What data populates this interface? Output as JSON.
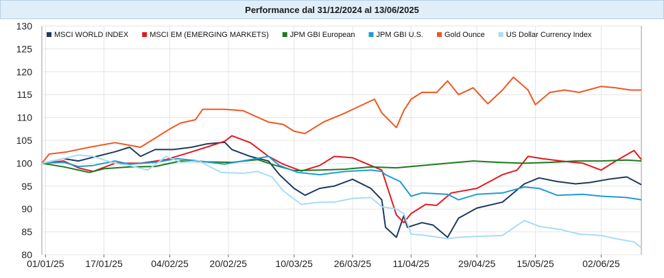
{
  "chart_data": {
    "type": "line",
    "title": "Performance dal 31/12/2024 al 13/06/2025",
    "xlabel": "",
    "ylabel": "",
    "x_start": "2024-12-31",
    "x_end": "2025-06-13",
    "x_ticks": [
      {
        "date": "2025-01-01",
        "label": "01/01/25"
      },
      {
        "date": "2025-01-17",
        "label": "17/01/25"
      },
      {
        "date": "2025-02-04",
        "label": "04/02/25"
      },
      {
        "date": "2025-02-20",
        "label": "20/02/25"
      },
      {
        "date": "2025-03-10",
        "label": "10/03/25"
      },
      {
        "date": "2025-03-26",
        "label": "26/03/25"
      },
      {
        "date": "2025-04-11",
        "label": "11/04/25"
      },
      {
        "date": "2025-04-29",
        "label": "29/04/25"
      },
      {
        "date": "2025-05-15",
        "label": "15/05/25"
      },
      {
        "date": "2025-06-02",
        "label": "02/06/25"
      }
    ],
    "ylim": [
      80,
      130
    ],
    "yticks": [
      80,
      85,
      90,
      95,
      100,
      105,
      110,
      115,
      120,
      125,
      130
    ],
    "grid": true,
    "legend_position": "top-left",
    "series": [
      {
        "name": "MSCI WORLD INDEX",
        "color": "#1c3a5e",
        "points": [
          [
            "2024-12-31",
            100
          ],
          [
            "2025-01-06",
            101
          ],
          [
            "2025-01-10",
            100.5
          ],
          [
            "2025-01-15",
            101.5
          ],
          [
            "2025-01-20",
            102.5
          ],
          [
            "2025-01-24",
            103.5
          ],
          [
            "2025-01-27",
            101.5
          ],
          [
            "2025-01-31",
            103
          ],
          [
            "2025-02-05",
            103
          ],
          [
            "2025-02-10",
            103.5
          ],
          [
            "2025-02-14",
            104.2
          ],
          [
            "2025-02-19",
            104.6
          ],
          [
            "2025-02-21",
            103
          ],
          [
            "2025-02-26",
            101.5
          ],
          [
            "2025-03-03",
            100.5
          ],
          [
            "2025-03-06",
            97.5
          ],
          [
            "2025-03-10",
            94.5
          ],
          [
            "2025-03-13",
            93
          ],
          [
            "2025-03-17",
            94.5
          ],
          [
            "2025-03-21",
            95
          ],
          [
            "2025-03-26",
            96.5
          ],
          [
            "2025-03-31",
            94.5
          ],
          [
            "2025-04-03",
            92
          ],
          [
            "2025-04-04",
            86
          ],
          [
            "2025-04-07",
            83.8
          ],
          [
            "2025-04-09",
            88.5
          ],
          [
            "2025-04-10",
            86
          ],
          [
            "2025-04-14",
            87
          ],
          [
            "2025-04-17",
            86.5
          ],
          [
            "2025-04-21",
            83.8
          ],
          [
            "2025-04-24",
            88
          ],
          [
            "2025-04-29",
            90.2
          ],
          [
            "2025-05-06",
            91.5
          ],
          [
            "2025-05-12",
            95.5
          ],
          [
            "2025-05-16",
            96.8
          ],
          [
            "2025-05-21",
            96
          ],
          [
            "2025-05-26",
            95.5
          ],
          [
            "2025-05-30",
            95.8
          ],
          [
            "2025-06-04",
            96.5
          ],
          [
            "2025-06-09",
            97
          ],
          [
            "2025-06-13",
            95.3
          ]
        ]
      },
      {
        "name": "MSCI EM (EMERGING MARKETS)",
        "color": "#e3181d",
        "points": [
          [
            "2024-12-31",
            100
          ],
          [
            "2025-01-06",
            100.5
          ],
          [
            "2025-01-10",
            99
          ],
          [
            "2025-01-14",
            98.2
          ],
          [
            "2025-01-20",
            100
          ],
          [
            "2025-01-27",
            100
          ],
          [
            "2025-02-03",
            100.8
          ],
          [
            "2025-02-10",
            102.5
          ],
          [
            "2025-02-14",
            103.5
          ],
          [
            "2025-02-19",
            104.8
          ],
          [
            "2025-02-21",
            106
          ],
          [
            "2025-02-26",
            104.5
          ],
          [
            "2025-03-03",
            101.5
          ],
          [
            "2025-03-07",
            99.8
          ],
          [
            "2025-03-12",
            98.3
          ],
          [
            "2025-03-17",
            99.5
          ],
          [
            "2025-03-21",
            101.5
          ],
          [
            "2025-03-26",
            101.2
          ],
          [
            "2025-03-31",
            99.5
          ],
          [
            "2025-04-03",
            98.5
          ],
          [
            "2025-04-07",
            88.7
          ],
          [
            "2025-04-09",
            87
          ],
          [
            "2025-04-11",
            89
          ],
          [
            "2025-04-15",
            91
          ],
          [
            "2025-04-18",
            90.8
          ],
          [
            "2025-04-22",
            93.5
          ],
          [
            "2025-04-29",
            94.5
          ],
          [
            "2025-05-06",
            97.5
          ],
          [
            "2025-05-10",
            98.5
          ],
          [
            "2025-05-13",
            101.5
          ],
          [
            "2025-05-17",
            101
          ],
          [
            "2025-05-22",
            100.5
          ],
          [
            "2025-05-28",
            100
          ],
          [
            "2025-06-02",
            98.5
          ],
          [
            "2025-06-06",
            100.5
          ],
          [
            "2025-06-11",
            102.8
          ],
          [
            "2025-06-13",
            100.8
          ]
        ]
      },
      {
        "name": "JPM GBI European",
        "color": "#1b7a1e",
        "points": [
          [
            "2024-12-31",
            100
          ],
          [
            "2025-01-06",
            99.2
          ],
          [
            "2025-01-13",
            98
          ],
          [
            "2025-01-17",
            98.8
          ],
          [
            "2025-01-24",
            99.2
          ],
          [
            "2025-01-31",
            99.3
          ],
          [
            "2025-02-07",
            100.5
          ],
          [
            "2025-02-14",
            100.3
          ],
          [
            "2025-02-21",
            100.2
          ],
          [
            "2025-02-28",
            100.8
          ],
          [
            "2025-03-05",
            99.5
          ],
          [
            "2025-03-10",
            98.4
          ],
          [
            "2025-03-17",
            98.5
          ],
          [
            "2025-03-24",
            98.7
          ],
          [
            "2025-03-31",
            99.2
          ],
          [
            "2025-04-07",
            99
          ],
          [
            "2025-04-14",
            99.5
          ],
          [
            "2025-04-21",
            100
          ],
          [
            "2025-04-28",
            100.5
          ],
          [
            "2025-05-05",
            100.2
          ],
          [
            "2025-05-12",
            100
          ],
          [
            "2025-05-19",
            100.2
          ],
          [
            "2025-05-26",
            100.5
          ],
          [
            "2025-06-02",
            100.5
          ],
          [
            "2025-06-09",
            100.7
          ],
          [
            "2025-06-13",
            100.5
          ]
        ]
      },
      {
        "name": "JPM GBI U.S.",
        "color": "#1f9ad6",
        "points": [
          [
            "2024-12-31",
            100
          ],
          [
            "2025-01-06",
            100.2
          ],
          [
            "2025-01-10",
            99.3
          ],
          [
            "2025-01-14",
            99.5
          ],
          [
            "2025-01-20",
            100.5
          ],
          [
            "2025-01-24",
            99.8
          ],
          [
            "2025-01-31",
            100.2
          ],
          [
            "2025-02-06",
            101
          ],
          [
            "2025-02-12",
            100.5
          ],
          [
            "2025-02-19",
            99.8
          ],
          [
            "2025-02-26",
            100.8
          ],
          [
            "2025-03-03",
            101.5
          ],
          [
            "2025-03-06",
            99.5
          ],
          [
            "2025-03-11",
            98
          ],
          [
            "2025-03-17",
            97.5
          ],
          [
            "2025-03-24",
            98.2
          ],
          [
            "2025-03-31",
            98.5
          ],
          [
            "2025-04-03",
            98.2
          ],
          [
            "2025-04-04",
            97.5
          ],
          [
            "2025-04-08",
            96
          ],
          [
            "2025-04-11",
            92.8
          ],
          [
            "2025-04-14",
            93.5
          ],
          [
            "2025-04-21",
            93.2
          ],
          [
            "2025-04-24",
            92
          ],
          [
            "2025-04-29",
            93.2
          ],
          [
            "2025-05-06",
            93.5
          ],
          [
            "2025-05-12",
            94.8
          ],
          [
            "2025-05-16",
            94.5
          ],
          [
            "2025-05-21",
            93
          ],
          [
            "2025-05-28",
            93.2
          ],
          [
            "2025-06-02",
            92.8
          ],
          [
            "2025-06-09",
            92.5
          ],
          [
            "2025-06-13",
            92
          ]
        ]
      },
      {
        "name": "Gold Ounce",
        "color": "#f0561f",
        "points": [
          [
            "2024-12-31",
            100
          ],
          [
            "2025-01-02",
            102
          ],
          [
            "2025-01-07",
            102.5
          ],
          [
            "2025-01-13",
            103.5
          ],
          [
            "2025-01-20",
            104.5
          ],
          [
            "2025-01-27",
            103.5
          ],
          [
            "2025-01-31",
            105.5
          ],
          [
            "2025-02-04",
            107.5
          ],
          [
            "2025-02-07",
            108.8
          ],
          [
            "2025-02-11",
            109.5
          ],
          [
            "2025-02-13",
            111.8
          ],
          [
            "2025-02-19",
            111.8
          ],
          [
            "2025-02-24",
            111.5
          ],
          [
            "2025-03-03",
            109
          ],
          [
            "2025-03-07",
            108.5
          ],
          [
            "2025-03-10",
            107
          ],
          [
            "2025-03-13",
            106.5
          ],
          [
            "2025-03-18",
            109
          ],
          [
            "2025-03-24",
            111
          ],
          [
            "2025-03-28",
            112.5
          ],
          [
            "2025-04-01",
            114
          ],
          [
            "2025-04-03",
            111
          ],
          [
            "2025-04-07",
            107.8
          ],
          [
            "2025-04-09",
            111.5
          ],
          [
            "2025-04-11",
            114
          ],
          [
            "2025-04-14",
            115.5
          ],
          [
            "2025-04-18",
            115.5
          ],
          [
            "2025-04-21",
            118
          ],
          [
            "2025-04-24",
            115
          ],
          [
            "2025-04-28",
            116.5
          ],
          [
            "2025-05-02",
            113
          ],
          [
            "2025-05-06",
            116
          ],
          [
            "2025-05-09",
            118.8
          ],
          [
            "2025-05-13",
            116
          ],
          [
            "2025-05-15",
            112.8
          ],
          [
            "2025-05-19",
            115.5
          ],
          [
            "2025-05-23",
            116
          ],
          [
            "2025-05-27",
            115.5
          ],
          [
            "2025-06-02",
            116.8
          ],
          [
            "2025-06-06",
            116.5
          ],
          [
            "2025-06-10",
            116
          ],
          [
            "2025-06-13",
            116
          ]
        ]
      },
      {
        "name": "US Dollar Currency Index",
        "color": "#a9dcf3",
        "points": [
          [
            "2024-12-31",
            100
          ],
          [
            "2025-01-06",
            101
          ],
          [
            "2025-01-10",
            101.8
          ],
          [
            "2025-01-14",
            101.5
          ],
          [
            "2025-01-20",
            100
          ],
          [
            "2025-01-24",
            99.5
          ],
          [
            "2025-01-29",
            98.5
          ],
          [
            "2025-02-03",
            101.5
          ],
          [
            "2025-02-07",
            100.2
          ],
          [
            "2025-02-12",
            100.5
          ],
          [
            "2025-02-18",
            98
          ],
          [
            "2025-02-24",
            97.8
          ],
          [
            "2025-02-28",
            98.2
          ],
          [
            "2025-03-04",
            97
          ],
          [
            "2025-03-07",
            94
          ],
          [
            "2025-03-12",
            91
          ],
          [
            "2025-03-17",
            91.5
          ],
          [
            "2025-03-21",
            91.5
          ],
          [
            "2025-03-26",
            92.3
          ],
          [
            "2025-03-31",
            92.5
          ],
          [
            "2025-04-03",
            90.5
          ],
          [
            "2025-04-07",
            90
          ],
          [
            "2025-04-09",
            89
          ],
          [
            "2025-04-11",
            84.5
          ],
          [
            "2025-04-15",
            84.2
          ],
          [
            "2025-04-21",
            83.5
          ],
          [
            "2025-04-24",
            83.8
          ],
          [
            "2025-04-29",
            84
          ],
          [
            "2025-05-06",
            84.2
          ],
          [
            "2025-05-12",
            87.5
          ],
          [
            "2025-05-16",
            86.2
          ],
          [
            "2025-05-22",
            85.5
          ],
          [
            "2025-05-27",
            84.5
          ],
          [
            "2025-06-02",
            84.2
          ],
          [
            "2025-06-06",
            83.5
          ],
          [
            "2025-06-11",
            82.8
          ],
          [
            "2025-06-13",
            81.5
          ]
        ]
      }
    ]
  }
}
